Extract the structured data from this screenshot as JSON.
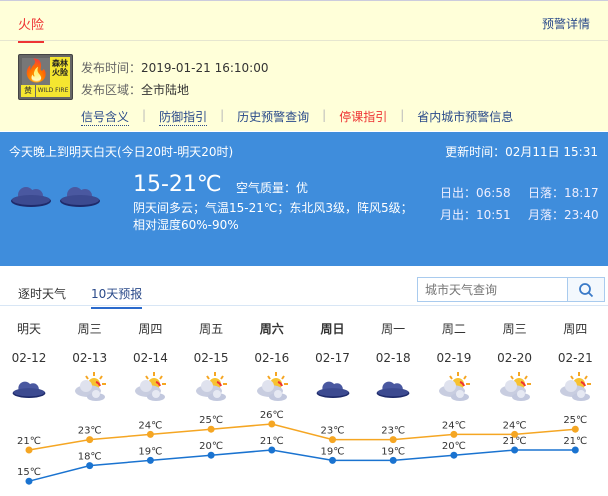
{
  "warning": {
    "tab": "火险",
    "detail_link": "预警详情",
    "badge": {
      "title": "森林火险",
      "level": "黄",
      "en": "WILD FIRE"
    },
    "publish_time_label": "发布时间：",
    "publish_time": "2019-01-21 16:10:00",
    "area_label": "发布区域：",
    "area": "全市陆地",
    "links": [
      "信号含义",
      "防御指引",
      "历史预警查询",
      "停课指引",
      "省内城市预警信息"
    ]
  },
  "current": {
    "period": "今天晚上到明天白天(今日20时-明天20时)",
    "update": "更新时间：02月11日 15:31",
    "temp": "15-21℃",
    "air_quality": "空气质量：优",
    "description": "阴天间多云；气温15-21℃；东北风3级，阵风5级；相对湿度60%-90%",
    "sunrise": "日出：06:58",
    "sunset": "日落：18:17",
    "moonrise": "月出：10:51",
    "moonset": "月落：23:40",
    "icons": [
      "cloudy-icon",
      "cloudy-icon"
    ]
  },
  "forecast_tabs": [
    "逐时天气",
    "10天预报"
  ],
  "active_tab": "10天预报",
  "search": {
    "placeholder": "城市天气查询"
  },
  "days": [
    {
      "week": "明天",
      "date": "02-12",
      "icon": "cloudy",
      "bold": false
    },
    {
      "week": "周三",
      "date": "02-13",
      "icon": "partly-cloudy",
      "bold": false
    },
    {
      "week": "周四",
      "date": "02-14",
      "icon": "partly-cloudy",
      "bold": false
    },
    {
      "week": "周五",
      "date": "02-15",
      "icon": "partly-cloudy",
      "bold": false
    },
    {
      "week": "周六",
      "date": "02-16",
      "icon": "partly-cloudy",
      "bold": true
    },
    {
      "week": "周日",
      "date": "02-17",
      "icon": "cloudy",
      "bold": true
    },
    {
      "week": "周一",
      "date": "02-18",
      "icon": "cloudy",
      "bold": false
    },
    {
      "week": "周二",
      "date": "02-19",
      "icon": "partly-cloudy",
      "bold": false
    },
    {
      "week": "周三",
      "date": "02-20",
      "icon": "partly-cloudy",
      "bold": false
    },
    {
      "week": "周四",
      "date": "02-21",
      "icon": "partly-cloudy",
      "bold": false
    }
  ],
  "chart_data": {
    "type": "line",
    "categories": [
      "02-12",
      "02-13",
      "02-14",
      "02-15",
      "02-16",
      "02-17",
      "02-18",
      "02-19",
      "02-20",
      "02-21"
    ],
    "unit": "℃",
    "series": [
      {
        "values": [
          21,
          23,
          24,
          25,
          26,
          23,
          23,
          24,
          24,
          25
        ],
        "color": "#f5a623"
      },
      {
        "values": [
          15,
          18,
          19,
          20,
          21,
          19,
          19,
          20,
          21,
          21
        ],
        "color": "#1a73d0"
      }
    ]
  }
}
